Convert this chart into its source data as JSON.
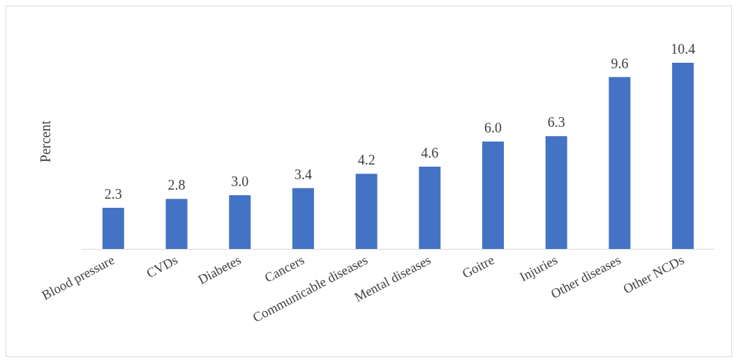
{
  "chart_data": {
    "type": "bar",
    "ylabel": "Percent",
    "tick_labels": "x",
    "categories": [
      "Blood pressure",
      "CVDs",
      "Diabetes",
      "Cancers",
      "Communicable diseases",
      "Mental diseases",
      "Goitre",
      "Injuries",
      "Other diseases",
      "Other NCDs"
    ],
    "values": [
      2.3,
      2.8,
      3.0,
      3.4,
      4.2,
      4.6,
      6.0,
      6.3,
      9.6,
      10.4
    ],
    "value_labels": [
      "2.3",
      "2.8",
      "3.0",
      "3.4",
      "4.2",
      "4.6",
      "6.0",
      "6.3",
      "9.6",
      "10.4"
    ],
    "color": "#4472c4"
  }
}
